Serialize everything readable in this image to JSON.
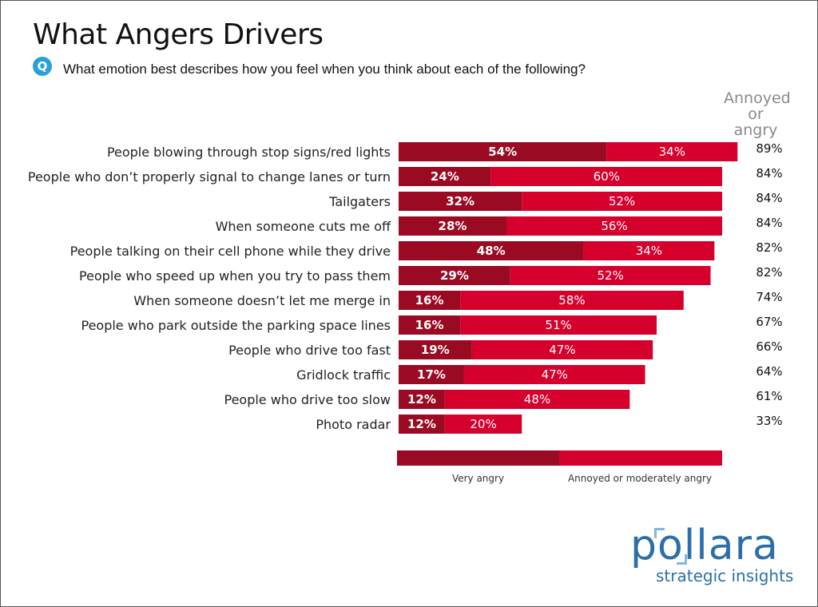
{
  "header": {
    "title": "What Angers Drivers",
    "q_icon": "Q",
    "question": "What emotion best describes how you feel when you think about each of the following?"
  },
  "chart_data": {
    "type": "bar",
    "orientation": "horizontal",
    "stacked": true,
    "title": "What Angers Drivers",
    "total_header": [
      "Annoyed",
      "or angry"
    ],
    "categories": [
      "People blowing through stop signs/red lights",
      "People who don’t properly signal to change lanes or turn",
      "Tailgaters",
      "When someone cuts me off",
      "People talking on their cell phone while they drive",
      "People who speed up when you try to pass them",
      "When someone doesn’t let me merge in",
      "People who park outside the parking space lines",
      "People who drive too fast",
      "Gridlock traffic",
      "People who drive too slow",
      "Photo radar"
    ],
    "series": [
      {
        "name": "Very angry",
        "color": "#9b0a23",
        "values": [
          54,
          24,
          32,
          28,
          48,
          29,
          16,
          16,
          19,
          17,
          12,
          12
        ]
      },
      {
        "name": "Annoyed or moderately angry",
        "color": "#d6002d",
        "values": [
          34,
          60,
          52,
          56,
          34,
          52,
          58,
          51,
          47,
          47,
          48,
          20
        ]
      }
    ],
    "totals": [
      "89%",
      "84%",
      "84%",
      "84%",
      "82%",
      "82%",
      "74%",
      "67%",
      "66%",
      "64%",
      "61%",
      "33%"
    ],
    "xlim": [
      0,
      84
    ],
    "legend_position": "bottom"
  },
  "legend": {
    "very_angry": "Very angry",
    "annoyed": "Annoyed or moderately angry"
  },
  "brand": {
    "logo_before": "p",
    "logo_o": "o",
    "logo_after": "llara",
    "tagline": "strategic insights",
    "color": "#2c6fa8"
  }
}
